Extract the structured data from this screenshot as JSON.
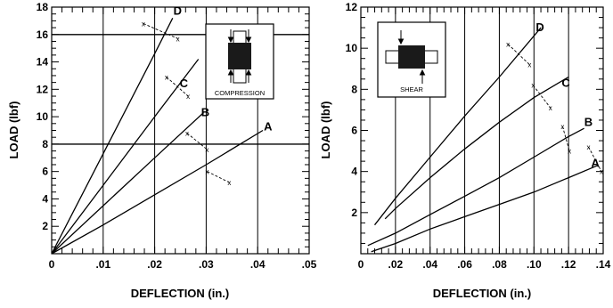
{
  "chart_data": [
    {
      "type": "line",
      "xlabel": "DEFLECTION (in.)",
      "ylabel": "LOAD (lbf)",
      "xlim": [
        0,
        0.05
      ],
      "ylim": [
        0,
        18
      ],
      "x_ticks": [
        "0",
        ".01",
        ".02",
        ".03",
        ".04",
        ".05"
      ],
      "y_ticks": [
        "2",
        "4",
        "6",
        "8",
        "10",
        "12",
        "14",
        "16",
        "18"
      ],
      "x_tick_values": [
        0,
        0.01,
        0.02,
        0.03,
        0.04,
        0.05
      ],
      "y_tick_values": [
        2,
        4,
        6,
        8,
        10,
        12,
        14,
        16,
        18
      ],
      "horizontal_reference_lines": [
        8,
        16
      ],
      "inset_label": "COMPRESSION",
      "series": [
        {
          "name": "A",
          "x": [
            0,
            0.01,
            0.02,
            0.03,
            0.041
          ],
          "y": [
            0,
            2.1,
            4.3,
            6.5,
            9.0
          ]
        },
        {
          "name": "B",
          "x": [
            0,
            0.01,
            0.02,
            0.0295
          ],
          "y": [
            0,
            3.5,
            7.0,
            10.3
          ]
        },
        {
          "name": "C",
          "x": [
            0,
            0.01,
            0.02,
            0.0285
          ],
          "y": [
            0,
            5.0,
            10.0,
            14.2
          ]
        },
        {
          "name": "D",
          "x": [
            0,
            0.01,
            0.02,
            0.0235
          ],
          "y": [
            0,
            7.3,
            14.6,
            17.2
          ]
        }
      ],
      "break_points": {
        "marker": "x",
        "points": [
          {
            "x": 0.0178,
            "y": 16.8
          },
          {
            "x": 0.0245,
            "y": 15.7
          },
          {
            "x": 0.0223,
            "y": 12.9
          },
          {
            "x": 0.0265,
            "y": 11.5
          },
          {
            "x": 0.0263,
            "y": 8.8
          },
          {
            "x": 0.0302,
            "y": 7.6
          },
          {
            "x": 0.0302,
            "y": 6.0
          },
          {
            "x": 0.0345,
            "y": 5.2
          }
        ]
      }
    },
    {
      "type": "line",
      "xlabel": "DEFLECTION (in.)",
      "ylabel": "LOAD (lbf)",
      "xlim": [
        0,
        0.14
      ],
      "ylim": [
        0,
        12
      ],
      "x_ticks": [
        "0",
        ".02",
        ".04",
        ".06",
        ".08",
        ".10",
        ".12",
        ".14"
      ],
      "y_ticks": [
        "2",
        "4",
        "6",
        "8",
        "10",
        "12"
      ],
      "x_tick_values": [
        0,
        0.02,
        0.04,
        0.06,
        0.08,
        0.1,
        0.12,
        0.14
      ],
      "y_tick_values": [
        2,
        4,
        6,
        8,
        10,
        12
      ],
      "inset_label": "SHEAR",
      "series": [
        {
          "name": "A",
          "x": [
            0.006,
            0.02,
            0.04,
            0.06,
            0.08,
            0.1,
            0.12,
            0.137
          ],
          "y": [
            0.1,
            0.5,
            1.2,
            1.8,
            2.4,
            3.0,
            3.7,
            4.3
          ]
        },
        {
          "name": "B",
          "x": [
            0.004,
            0.02,
            0.04,
            0.06,
            0.08,
            0.1,
            0.12,
            0.129
          ],
          "y": [
            0.4,
            1.0,
            1.9,
            2.8,
            3.7,
            4.7,
            5.7,
            6.1
          ]
        },
        {
          "name": "C",
          "x": [
            0.014,
            0.02,
            0.04,
            0.06,
            0.08,
            0.1,
            0.12
          ],
          "y": [
            1.7,
            2.2,
            3.7,
            5.1,
            6.4,
            7.6,
            8.6
          ]
        },
        {
          "name": "D",
          "x": [
            0.008,
            0.02,
            0.04,
            0.06,
            0.08,
            0.1,
            0.104
          ],
          "y": [
            1.4,
            2.7,
            4.7,
            6.7,
            8.6,
            10.6,
            11.0
          ]
        }
      ],
      "break_points": {
        "marker": "x",
        "points": [
          {
            "x": 0.085,
            "y": 10.2
          },
          {
            "x": 0.0975,
            "y": 9.2
          },
          {
            "x": 0.0995,
            "y": 8.2
          },
          {
            "x": 0.1095,
            "y": 7.1
          },
          {
            "x": 0.1165,
            "y": 6.2
          },
          {
            "x": 0.1205,
            "y": 5.0
          },
          {
            "x": 0.1315,
            "y": 5.2
          },
          {
            "x": 0.139,
            "y": 4.0
          }
        ]
      }
    }
  ]
}
